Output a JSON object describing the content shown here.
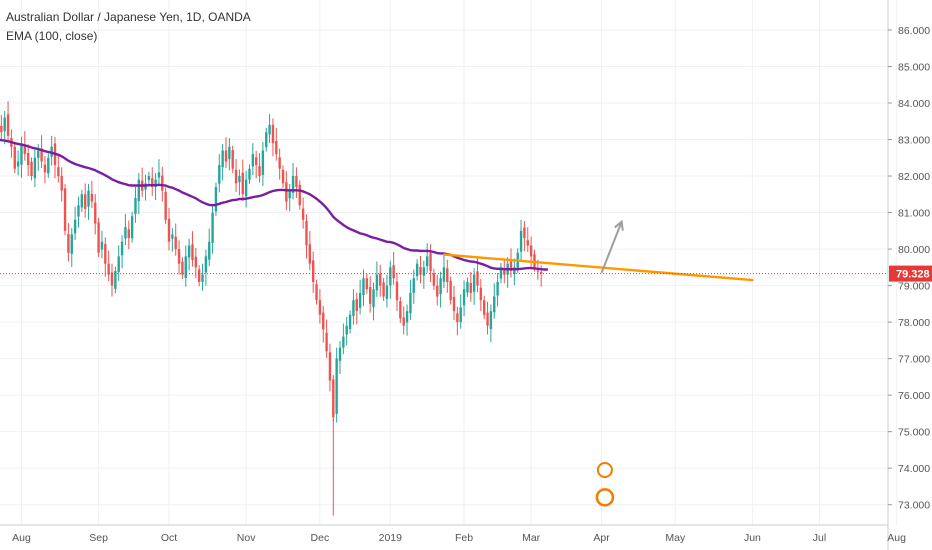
{
  "legend": {
    "title": "Australian Dollar / Japanese Yen, 1D, OANDA",
    "indicator": "EMA (100, close)"
  },
  "chart_data": {
    "type": "candlestick",
    "symbol": "AUD/JPY",
    "interval": "1D",
    "source": "OANDA",
    "ylim": [
      72.8,
      86.3
    ],
    "y_ticks": [
      "86.000",
      "85.000",
      "84.000",
      "83.000",
      "82.000",
      "81.000",
      "80.000",
      "79.000",
      "78.000",
      "77.000",
      "76.000",
      "75.000",
      "74.000",
      "73.000"
    ],
    "x_ticks": [
      "Aug",
      "Sep",
      "Oct",
      "Nov",
      "Dec",
      "2019",
      "Feb",
      "Mar",
      "Apr",
      "May",
      "Jun",
      "Jul",
      "Aug"
    ],
    "x_tick_index": [
      7,
      30,
      51,
      74,
      96,
      117,
      139,
      159,
      180,
      202,
      225,
      245,
      268
    ],
    "last_price": {
      "value": 79.328,
      "label": "79.328"
    },
    "close": [
      83.4,
      83.2,
      83.6,
      83.1,
      82.8,
      82.2,
      82.4,
      82.9,
      82.6,
      82.3,
      82.0,
      82.5,
      82.7,
      82.4,
      82.1,
      82.5,
      82.8,
      82.3,
      82.0,
      81.6,
      80.5,
      79.9,
      80.4,
      80.8,
      81.2,
      81.5,
      81.1,
      81.6,
      81.3,
      80.7,
      79.9,
      80.2,
      79.6,
      79.3,
      79.0,
      79.4,
      79.8,
      80.2,
      80.6,
      80.3,
      80.9,
      81.4,
      81.9,
      81.6,
      81.8,
      82.0,
      81.7,
      81.9,
      82.1,
      81.6,
      80.8,
      80.2,
      80.4,
      80.0,
      79.6,
      79.3,
      79.8,
      80.1,
      79.7,
      79.5,
      79.1,
      79.3,
      79.8,
      80.2,
      81.0,
      81.7,
      82.3,
      82.7,
      82.4,
      82.8,
      82.2,
      81.8,
      82.0,
      81.5,
      81.9,
      82.2,
      82.6,
      82.3,
      82.0,
      82.7,
      83.2,
      83.4,
      82.9,
      82.6,
      82.2,
      81.8,
      81.3,
      81.6,
      82.0,
      81.7,
      81.2,
      80.8,
      80.1,
      79.6,
      79.1,
      78.6,
      78.2,
      77.8,
      77.2,
      76.4,
      75.4,
      77.0,
      77.3,
      77.6,
      77.9,
      78.2,
      78.6,
      78.3,
      78.8,
      79.2,
      78.9,
      78.5,
      78.9,
      79.3,
      79.0,
      78.7,
      79.0,
      79.5,
      79.2,
      78.6,
      78.1,
      77.9,
      78.3,
      78.8,
      79.2,
      79.6,
      79.3,
      79.5,
      79.8,
      79.4,
      79.0,
      78.7,
      79.2,
      79.5,
      79.1,
      78.6,
      78.3,
      78.0,
      78.4,
      78.9,
      79.1,
      78.8,
      79.3,
      79.0,
      78.6,
      78.2,
      77.9,
      78.3,
      78.7,
      79.1,
      79.5,
      79.3,
      79.6,
      79.4,
      79.5,
      79.9,
      80.5,
      80.3,
      80.1,
      79.8,
      79.5,
      79.4,
      79.33
    ],
    "ema100": [
      83.0,
      82.98,
      82.97,
      82.95,
      82.93,
      82.9,
      82.88,
      82.86,
      82.84,
      82.81,
      82.78,
      82.76,
      82.74,
      82.71,
      82.68,
      82.66,
      82.64,
      82.61,
      82.58,
      82.54,
      82.48,
      82.42,
      82.37,
      82.33,
      82.3,
      82.27,
      82.24,
      82.22,
      82.19,
      82.16,
      82.11,
      82.07,
      82.02,
      81.97,
      81.91,
      81.87,
      81.83,
      81.8,
      81.78,
      81.75,
      81.74,
      81.74,
      81.74,
      81.74,
      81.74,
      81.75,
      81.75,
      81.75,
      81.76,
      81.75,
      81.74,
      81.7,
      81.68,
      81.64,
      81.6,
      81.55,
      81.51,
      81.47,
      81.43,
      81.39,
      81.33,
      81.28,
      81.24,
      81.21,
      81.2,
      81.21,
      81.24,
      81.27,
      81.29,
      81.32,
      81.34,
      81.35,
      81.37,
      81.37,
      81.38,
      81.4,
      81.42,
      81.44,
      81.45,
      81.48,
      81.52,
      81.56,
      81.59,
      81.61,
      81.62,
      81.62,
      81.61,
      81.61,
      81.61,
      81.61,
      81.6,
      81.58,
      81.54,
      81.5,
      81.44,
      81.38,
      81.3,
      81.22,
      81.12,
      81.01,
      80.88,
      80.8,
      80.73,
      80.66,
      80.6,
      80.55,
      80.51,
      80.47,
      80.43,
      80.41,
      80.38,
      80.34,
      80.31,
      80.29,
      80.26,
      80.23,
      80.2,
      80.19,
      80.17,
      80.13,
      80.08,
      80.03,
      80.0,
      79.97,
      79.96,
      79.96,
      79.95,
      79.95,
      79.95,
      79.94,
      79.92,
      79.89,
      79.88,
      79.88,
      79.86,
      79.84,
      79.8,
      79.76,
      79.73,
      79.7,
      79.68,
      79.66,
      79.65,
      79.63,
      79.6,
      79.57,
      79.53,
      79.49,
      79.47,
      79.46,
      79.46,
      79.45,
      79.45,
      79.45,
      79.45,
      79.45,
      79.46,
      79.47,
      79.48,
      79.48,
      79.47,
      79.46,
      79.45,
      79.44,
      79.44
    ],
    "trendline": {
      "from": [
        133,
        79.85
      ],
      "to": [
        225,
        79.15
      ]
    },
    "projection_arrow": {
      "from": [
        180,
        79.35
      ],
      "to": [
        186,
        80.75
      ]
    }
  },
  "colors": {
    "up": "#26a69a",
    "down": "#ef5350",
    "ema": "#7b1fa2",
    "trendline": "#ff9800",
    "arrow": "#9e9e9e",
    "last_price_line": "#e53935",
    "badge_bg": "#e53935",
    "grid": "#eef1f5"
  }
}
